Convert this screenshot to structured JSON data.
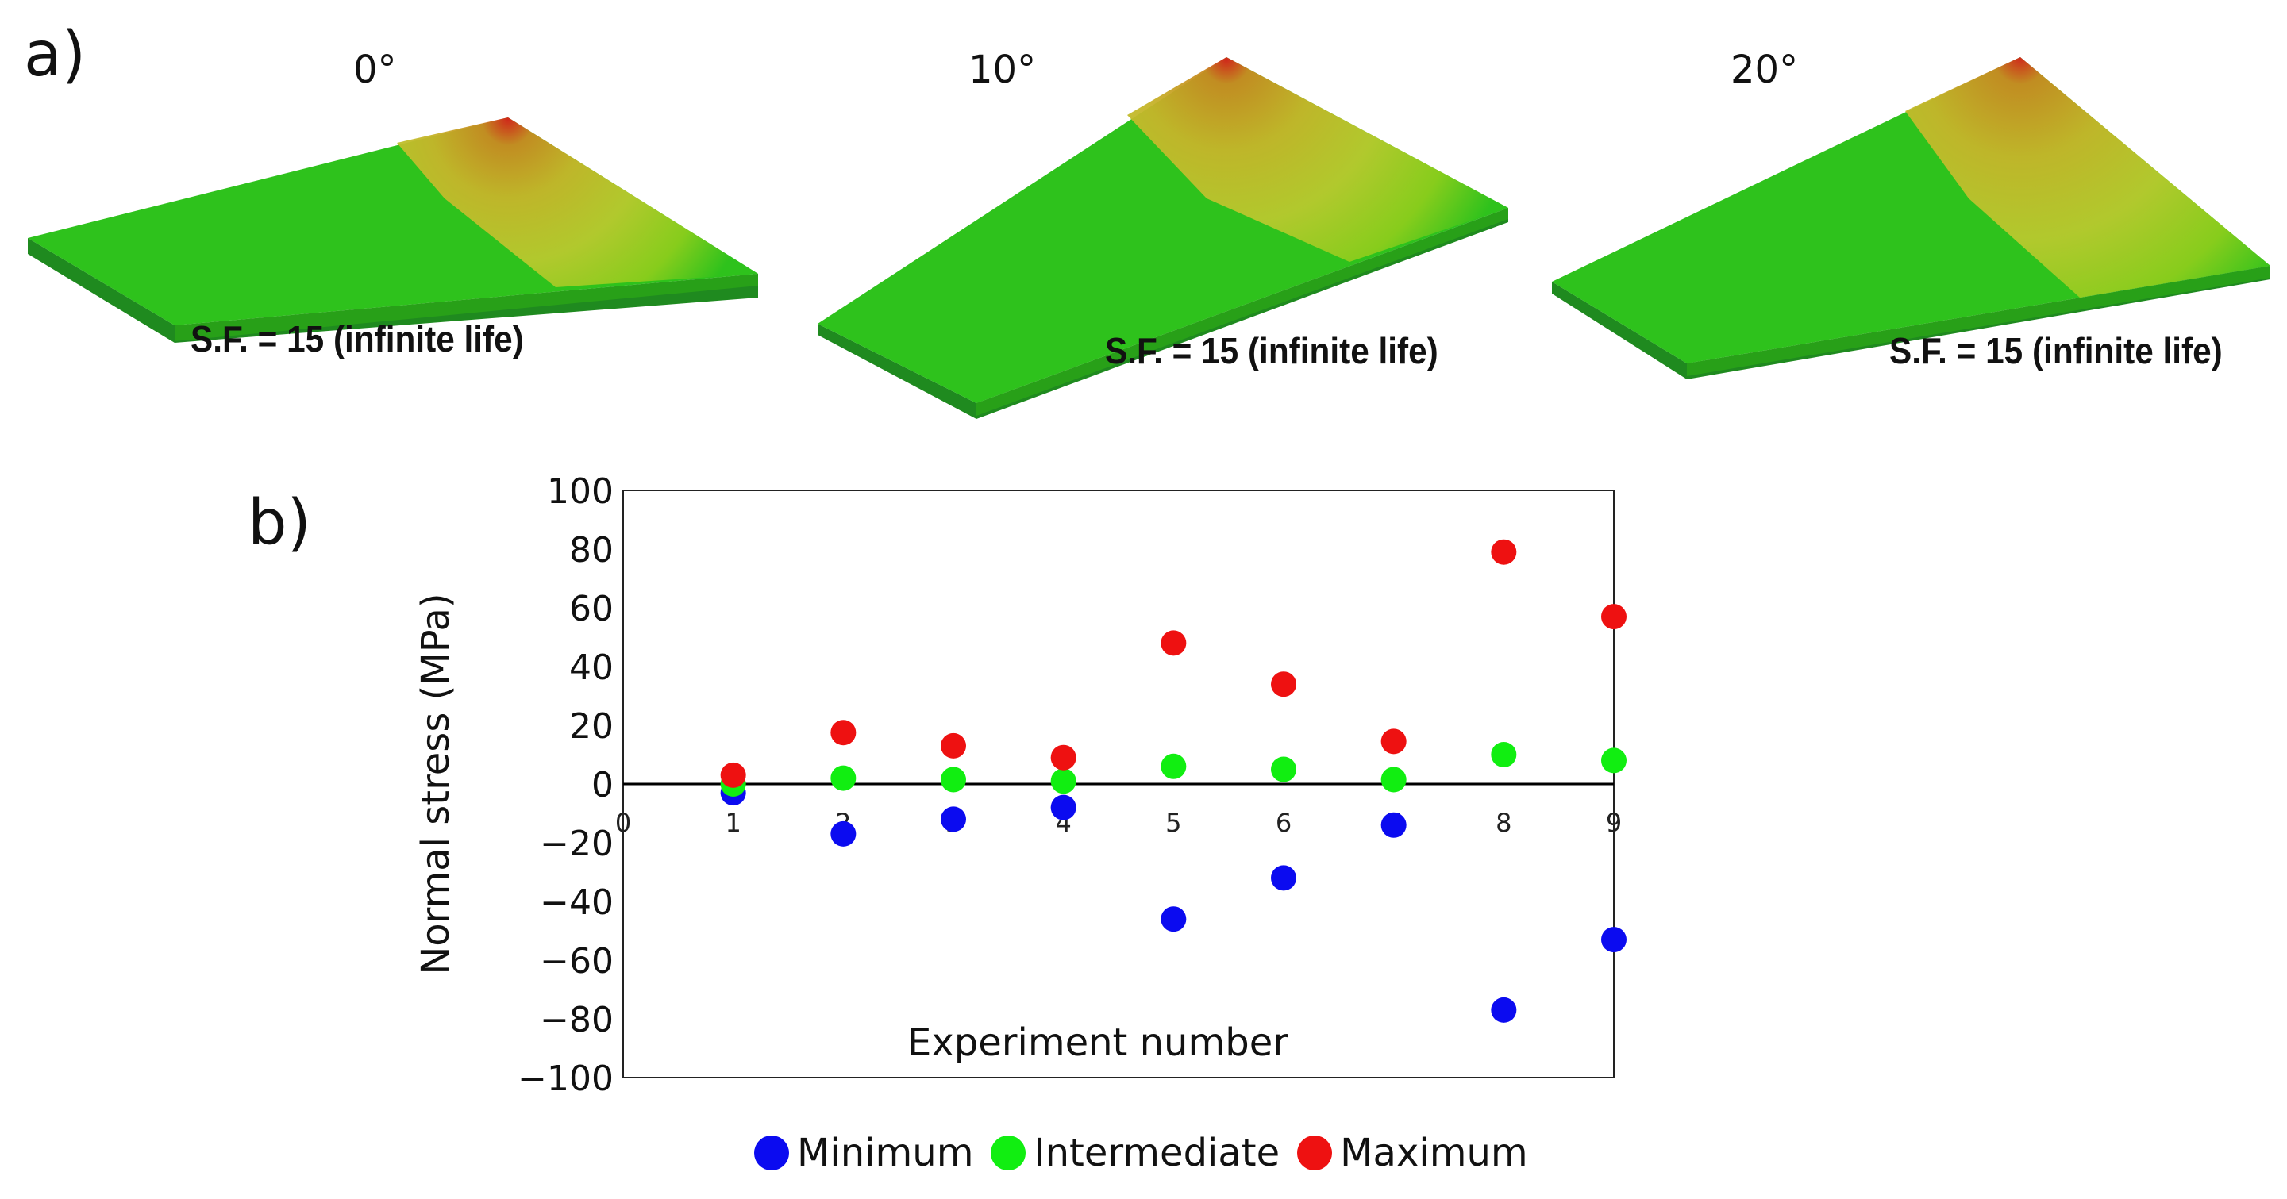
{
  "panel_a": {
    "label": "a)",
    "plates": [
      {
        "angle": "0°",
        "caption": "S.F. = 15 (infinite life)"
      },
      {
        "angle": "10°",
        "caption": "S.F. = 15 (infinite life)"
      },
      {
        "angle": "20°",
        "caption": "S.F. = 15 (infinite life)"
      }
    ]
  },
  "panel_b": {
    "label": "b)"
  },
  "chart_data": {
    "type": "scatter",
    "xlabel": "Experiment number",
    "ylabel": "Normal stress (MPa)",
    "xlim": [
      0,
      9
    ],
    "ylim": [
      -100,
      100
    ],
    "x_ticks": [
      0,
      1,
      2,
      3,
      4,
      5,
      6,
      7,
      8,
      9
    ],
    "y_ticks": [
      100,
      80,
      60,
      40,
      20,
      0,
      -20,
      -40,
      -60,
      -80,
      -100
    ],
    "y_tick_labels": [
      "100",
      "80",
      "60",
      "40",
      "20",
      "0",
      "−20",
      "−40",
      "−60",
      "−80",
      "−100"
    ],
    "x": [
      1,
      2,
      3,
      4,
      5,
      6,
      7,
      8,
      9
    ],
    "series": [
      {
        "name": "Minimum",
        "color": "#0b0bf0",
        "values": [
          -3,
          -17,
          -12,
          -8,
          -46,
          -32,
          -14,
          -77,
          -53
        ]
      },
      {
        "name": "Intermediate",
        "color": "#11ee11",
        "values": [
          0,
          2,
          1.5,
          1,
          6,
          5,
          1.5,
          10,
          8
        ]
      },
      {
        "name": "Maximum",
        "color": "#ee1111",
        "values": [
          3,
          17.5,
          13,
          9,
          48,
          34,
          14.5,
          79,
          57
        ]
      }
    ],
    "legend_position": "bottom-center",
    "grid": false
  }
}
